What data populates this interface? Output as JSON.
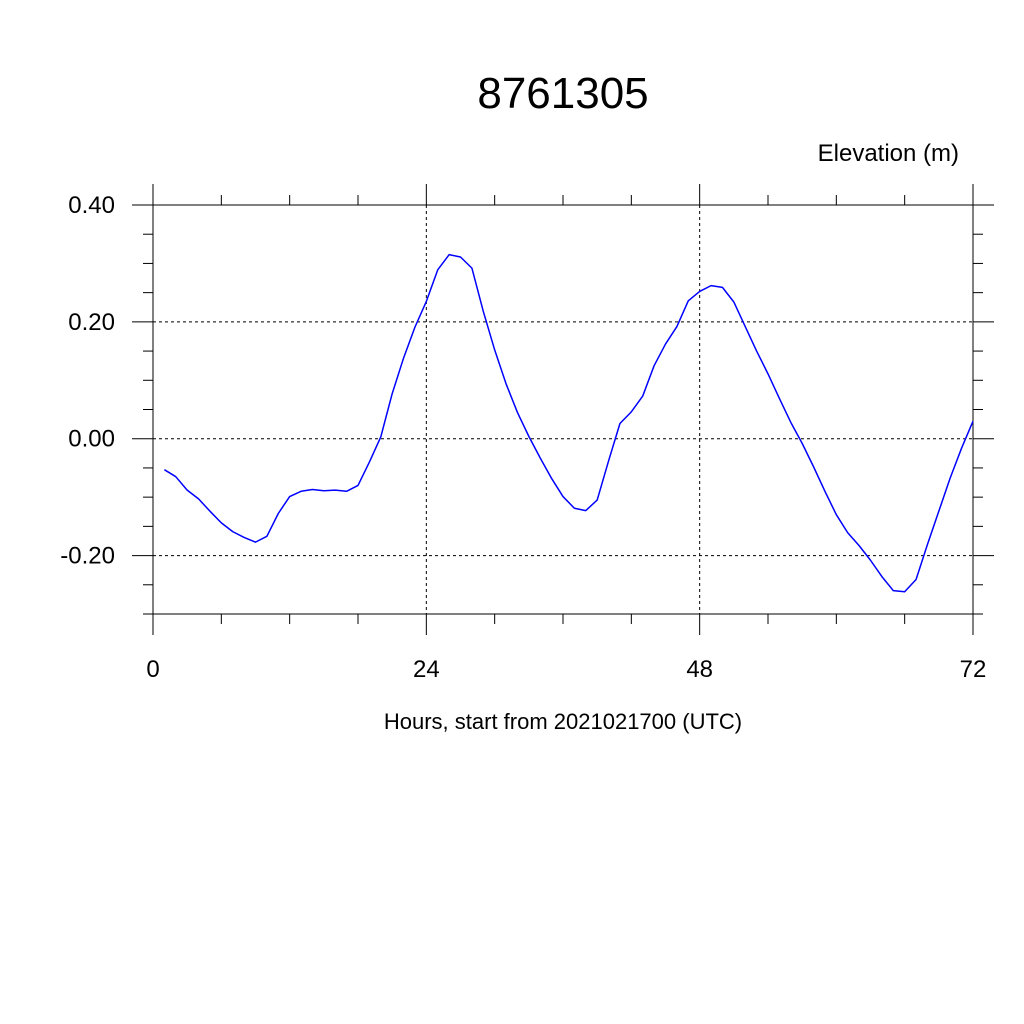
{
  "chart_data": {
    "type": "line",
    "title": "8761305",
    "ylabel": "Elevation (m)",
    "xlabel": "Hours, start from 2021021700 (UTC)",
    "xlim": [
      0,
      72
    ],
    "ylim": [
      -0.3,
      0.4
    ],
    "xticks": [
      0,
      24,
      48,
      72
    ],
    "xtick_labels": [
      "0",
      "24",
      "48",
      "72"
    ],
    "yticks": [
      0.4,
      0.2,
      0.0,
      -0.2
    ],
    "ytick_labels": [
      "0.40",
      "0.20",
      "0.00",
      "-0.20"
    ],
    "grid": true,
    "line_color": "#0000ff",
    "series": [
      {
        "x": [
          1,
          2,
          3,
          4,
          5,
          6,
          7,
          8,
          9,
          10,
          11,
          12,
          13,
          14,
          15,
          16,
          17,
          18,
          19,
          20,
          21,
          22,
          23,
          24,
          25,
          26,
          27,
          28,
          29,
          30,
          31,
          32,
          33,
          34,
          35,
          36,
          37,
          38,
          39,
          40,
          41,
          42,
          43,
          44,
          45,
          46,
          47,
          48,
          49,
          50,
          51,
          52,
          53,
          54,
          55,
          56,
          57,
          58,
          59,
          60,
          61,
          62,
          63,
          64,
          65,
          66,
          67,
          68,
          69,
          70,
          71,
          72
        ],
        "y": [
          -0.053,
          -0.065,
          -0.088,
          -0.103,
          -0.124,
          -0.144,
          -0.159,
          -0.169,
          -0.177,
          -0.167,
          -0.128,
          -0.099,
          -0.09,
          -0.087,
          -0.089,
          -0.088,
          -0.09,
          -0.08,
          -0.04,
          0.003,
          0.077,
          0.138,
          0.191,
          0.235,
          0.289,
          0.315,
          0.311,
          0.292,
          0.218,
          0.152,
          0.094,
          0.045,
          0.004,
          -0.033,
          -0.068,
          -0.099,
          -0.119,
          -0.123,
          -0.105,
          -0.038,
          0.026,
          0.046,
          0.073,
          0.125,
          0.162,
          0.192,
          0.236,
          0.252,
          0.262,
          0.259,
          0.234,
          0.192,
          0.15,
          0.111,
          0.069,
          0.028,
          -0.008,
          -0.048,
          -0.09,
          -0.13,
          -0.161,
          -0.183,
          -0.208,
          -0.236,
          -0.26,
          -0.262,
          -0.241,
          -0.181,
          -0.124,
          -0.067,
          -0.016,
          0.03
        ]
      }
    ]
  }
}
